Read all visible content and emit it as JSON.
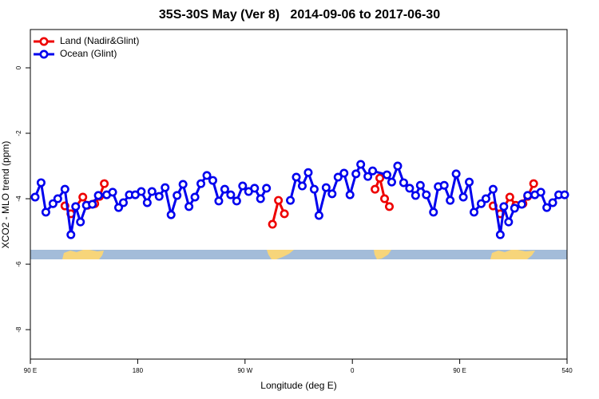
{
  "chart_data": {
    "type": "line",
    "title": "35S-30S May (Ver 8)   2014-09-06 to 2017-06-30",
    "x_label": "Longitude (deg E)",
    "y_label": "XCO2 - MLO trend (ppm)",
    "xlim": [
      90,
      540
    ],
    "ylim": [
      -8.9,
      1.17
    ],
    "xticks": [
      {
        "value": 90,
        "label": "90 E"
      },
      180,
      {
        "value": 270,
        "label": "90 W"
      },
      {
        "value": 360,
        "label": "0"
      },
      {
        "value": 450,
        "label": "90 E"
      },
      540
    ],
    "yticks": [
      0,
      -2,
      -4,
      -6,
      -8
    ],
    "legend": "top-left",
    "series": [
      {
        "name": "Land (Nadir&Glint)",
        "color": "#ee0000",
        "x": [
          119,
          124,
          134,
          138,
          144,
          148,
          152,
          220,
          293,
          298,
          303,
          340,
          379,
          383,
          387,
          391,
          430,
          478,
          484,
          492,
          497,
          503,
          507,
          512
        ],
        "values": [
          -4.22,
          -4.46,
          -3.95,
          -4.2,
          -4.15,
          -3.93,
          -3.54,
          null,
          -4.78,
          -4.05,
          -4.46,
          null,
          -3.71,
          -3.37,
          -4.0,
          -4.24,
          null,
          -4.22,
          -4.46,
          -3.95,
          -4.2,
          -4.15,
          -3.93,
          -3.54
        ]
      },
      {
        "name": "Ocean (Glint)",
        "color": "#0000ee",
        "x": [
          94,
          99,
          103,
          109,
          113,
          119,
          124,
          128,
          132,
          137,
          142,
          147,
          154,
          159,
          164,
          168,
          173,
          178,
          183,
          188,
          192,
          198,
          203,
          208,
          213,
          218,
          223,
          228,
          233,
          238,
          243,
          248,
          253,
          258,
          263,
          268,
          273,
          278,
          283,
          288,
          298,
          308,
          313,
          318,
          323,
          328,
          332,
          338,
          343,
          348,
          353,
          358,
          363,
          367,
          373,
          377,
          389,
          393,
          398,
          403,
          408,
          413,
          417,
          422,
          428,
          432,
          437,
          442,
          447,
          453,
          458,
          462,
          468,
          472,
          478,
          484,
          487,
          491,
          496,
          502,
          507,
          513,
          518,
          523,
          528,
          533,
          538
        ],
        "values": [
          -3.95,
          -3.51,
          -4.41,
          -4.15,
          -4.0,
          -3.71,
          -5.1,
          -4.24,
          -4.71,
          -4.2,
          -4.17,
          -3.9,
          -3.88,
          -3.8,
          -4.27,
          -4.12,
          -3.88,
          -3.88,
          -3.78,
          -4.12,
          -3.78,
          -3.93,
          -3.66,
          -4.49,
          -3.9,
          -3.56,
          -4.24,
          -3.95,
          -3.54,
          -3.29,
          -3.44,
          -4.07,
          -3.71,
          -3.88,
          -4.07,
          -3.61,
          -3.78,
          -3.68,
          -4.0,
          -3.68,
          null,
          -4.05,
          -3.34,
          -3.61,
          -3.2,
          -3.71,
          -4.51,
          -3.66,
          -3.85,
          -3.34,
          -3.22,
          -3.88,
          -3.24,
          -2.95,
          -3.32,
          -3.15,
          -3.27,
          -3.49,
          -3.0,
          -3.51,
          -3.68,
          -3.9,
          -3.59,
          -3.88,
          -4.41,
          -3.63,
          -3.59,
          -4.05,
          -3.24,
          -3.95,
          -3.49,
          -4.41,
          -4.15,
          -4.0,
          -3.71,
          -5.1,
          -4.24,
          -4.71,
          -4.29,
          -4.17,
          -3.9,
          -3.88,
          -3.8,
          -4.27,
          -4.12,
          -3.88,
          -3.88
        ]
      }
    ]
  }
}
